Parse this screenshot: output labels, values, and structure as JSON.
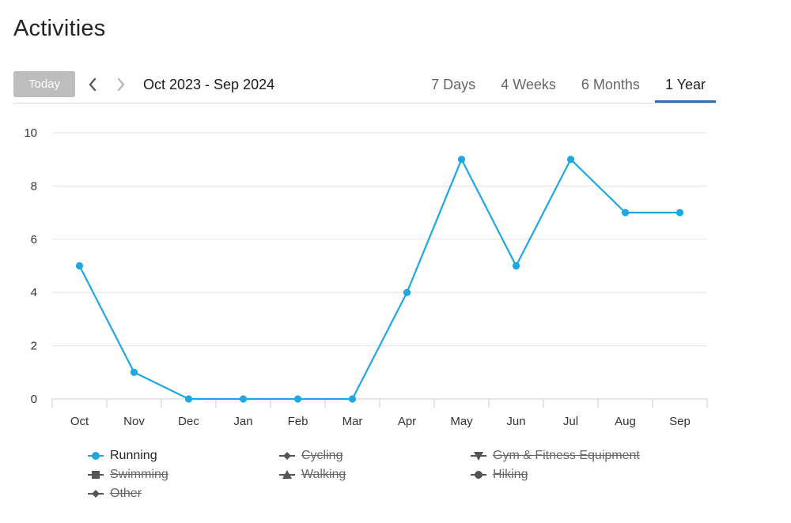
{
  "page": {
    "title": "Activities"
  },
  "toolbar": {
    "today_label": "Today",
    "date_range": "Oct 2023 - Sep 2024",
    "tabs": [
      {
        "label": "7 Days",
        "active": false
      },
      {
        "label": "4 Weeks",
        "active": false
      },
      {
        "label": "6 Months",
        "active": false
      },
      {
        "label": "1 Year",
        "active": true
      }
    ]
  },
  "colors": {
    "series_running": "#1ea7e0",
    "tab_active_underline": "#2a6fbf",
    "disabled_legend": "#666666",
    "grid": "#e3e3e3"
  },
  "chart_data": {
    "type": "line",
    "title": "",
    "xlabel": "",
    "ylabel": "",
    "categories": [
      "Oct",
      "Nov",
      "Dec",
      "Jan",
      "Feb",
      "Mar",
      "Apr",
      "May",
      "Jun",
      "Jul",
      "Aug",
      "Sep"
    ],
    "ylim": [
      0,
      10
    ],
    "yticks": [
      0,
      2,
      4,
      6,
      8,
      10
    ],
    "grid": true,
    "legend_position": "bottom",
    "series": [
      {
        "name": "Running",
        "values": [
          5,
          1,
          0,
          0,
          0,
          0,
          4,
          9,
          5,
          9,
          7,
          7
        ],
        "visible": true
      }
    ]
  },
  "legend": [
    {
      "label": "Running",
      "marker": "circle",
      "visible": true
    },
    {
      "label": "Cycling",
      "marker": "diamond",
      "visible": false
    },
    {
      "label": "Gym & Fitness Equipment",
      "marker": "triangle-down",
      "visible": false
    },
    {
      "label": "Swimming",
      "marker": "square",
      "visible": false
    },
    {
      "label": "Walking",
      "marker": "triangle-up",
      "visible": false
    },
    {
      "label": "Hiking",
      "marker": "circle",
      "visible": false
    },
    {
      "label": "Other",
      "marker": "diamond",
      "visible": false
    }
  ]
}
